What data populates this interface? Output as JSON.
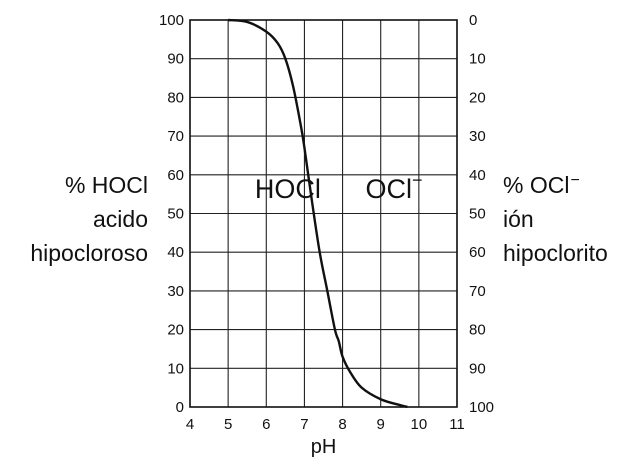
{
  "chart_data": {
    "type": "line",
    "xlabel": "pH",
    "xlim": [
      4,
      11
    ],
    "x_ticks": [
      4,
      5,
      6,
      7,
      8,
      9,
      10,
      11
    ],
    "ylim": [
      0,
      100
    ],
    "y_ticks_left": [
      0,
      10,
      20,
      30,
      40,
      50,
      60,
      70,
      80,
      90,
      100
    ],
    "y_ticks_right": [
      100,
      90,
      80,
      70,
      60,
      50,
      40,
      30,
      20,
      10,
      0
    ],
    "grid": true,
    "left_label": [
      "% HOCl",
      "acido",
      "hipocloroso"
    ],
    "right_label": [
      "% OCl",
      "ión",
      "hipoclorito"
    ],
    "right_label_superscript": "−",
    "region_labels": [
      {
        "text": "HOCl",
        "x": 5.7,
        "y": 54
      },
      {
        "text": "OCl",
        "superscript": "−",
        "x": 8.6,
        "y": 54
      }
    ],
    "series": [
      {
        "x": [
          5.0,
          5.5,
          6.0,
          6.3,
          6.5,
          6.7,
          6.9,
          7.0,
          7.2,
          7.4,
          7.6,
          7.8,
          7.9,
          8.0,
          8.2,
          8.5,
          9.0,
          9.5,
          9.7
        ],
        "values": [
          100,
          99.5,
          97,
          94,
          90,
          83,
          73,
          67,
          53,
          40,
          30,
          20,
          17,
          13,
          9,
          5,
          2,
          0.5,
          0
        ]
      }
    ]
  }
}
